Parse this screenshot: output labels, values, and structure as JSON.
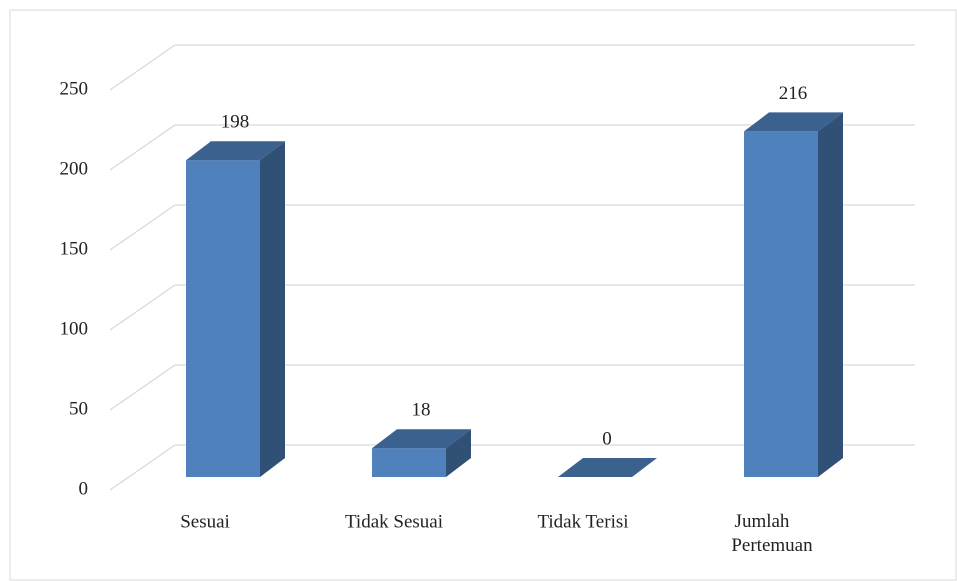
{
  "chart_data": {
    "type": "bar3d",
    "categories": [
      "Sesuai",
      "Tidak Sesuai",
      "Tidak Terisi",
      "Jumlah Pertemuan"
    ],
    "values": [
      198,
      18,
      0,
      216
    ],
    "color": "#4f81bd",
    "ylim": [
      0,
      250
    ],
    "yticks": [
      0,
      50,
      100,
      150,
      200,
      250
    ],
    "grid": true
  }
}
